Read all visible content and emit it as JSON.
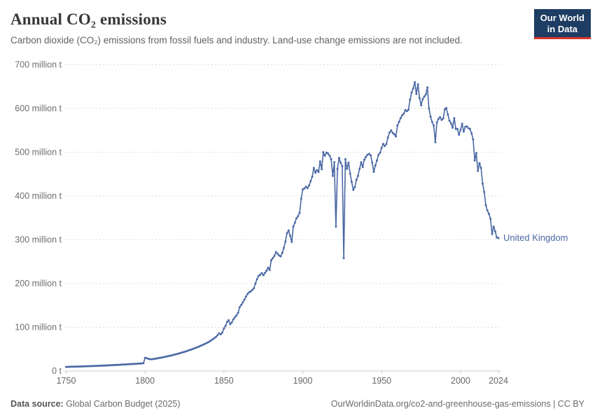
{
  "header": {
    "title": "Annual CO₂ emissions",
    "subtitle": "Carbon dioxide (CO₂) emissions from fossil fuels and industry. Land-use change emissions are not included."
  },
  "logo": {
    "line1": "Our World",
    "line2": "in Data",
    "bg_color": "#1d3d63",
    "accent_color": "#d8352a"
  },
  "footer": {
    "source_label": "Data source:",
    "source": "Global Carbon Budget (2025)",
    "link": "OurWorldinData.org/co2-and-greenhouse-gas-emissions | CC BY"
  },
  "chart_data": {
    "type": "line",
    "title": "Annual CO₂ emissions",
    "unit": "million t",
    "xlim": [
      1750,
      2024
    ],
    "ylim": [
      0,
      700
    ],
    "grid": "dashed-horizontal",
    "x_ticks": [
      1750,
      1800,
      1850,
      1900,
      1950,
      2000,
      2024
    ],
    "y_ticks": [
      {
        "value": 0,
        "label": "0 t"
      },
      {
        "value": 100,
        "label": "100 million t"
      },
      {
        "value": 200,
        "label": "200 million t"
      },
      {
        "value": 300,
        "label": "300 million t"
      },
      {
        "value": 400,
        "label": "400 million t"
      },
      {
        "value": 500,
        "label": "500 million t"
      },
      {
        "value": 600,
        "label": "600 million t"
      },
      {
        "value": 700,
        "label": "700 million t"
      }
    ],
    "series": [
      {
        "name": "United Kingdom",
        "color": "#4a68a4",
        "points": [
          [
            1750,
            9.4
          ],
          [
            1751,
            9.5
          ],
          [
            1752,
            9.6
          ],
          [
            1753,
            9.7
          ],
          [
            1754,
            9.8
          ],
          [
            1755,
            9.9
          ],
          [
            1756,
            10.0
          ],
          [
            1757,
            10.1
          ],
          [
            1758,
            10.2
          ],
          [
            1759,
            10.3
          ],
          [
            1760,
            10.4
          ],
          [
            1761,
            10.6
          ],
          [
            1762,
            10.7
          ],
          [
            1763,
            10.8
          ],
          [
            1764,
            11.0
          ],
          [
            1765,
            11.1
          ],
          [
            1766,
            11.2
          ],
          [
            1767,
            11.4
          ],
          [
            1768,
            11.5
          ],
          [
            1769,
            11.7
          ],
          [
            1770,
            11.8
          ],
          [
            1771,
            12.0
          ],
          [
            1772,
            12.1
          ],
          [
            1773,
            12.3
          ],
          [
            1774,
            12.4
          ],
          [
            1775,
            12.6
          ],
          [
            1776,
            12.8
          ],
          [
            1777,
            12.9
          ],
          [
            1778,
            13.1
          ],
          [
            1779,
            13.3
          ],
          [
            1780,
            13.5
          ],
          [
            1781,
            13.7
          ],
          [
            1782,
            13.9
          ],
          [
            1783,
            14.1
          ],
          [
            1784,
            14.3
          ],
          [
            1785,
            14.5
          ],
          [
            1786,
            14.7
          ],
          [
            1787,
            14.9
          ],
          [
            1788,
            15.1
          ],
          [
            1789,
            15.3
          ],
          [
            1790,
            15.5
          ],
          [
            1791,
            15.8
          ],
          [
            1792,
            16.0
          ],
          [
            1793,
            16.2
          ],
          [
            1794,
            16.5
          ],
          [
            1795,
            16.7
          ],
          [
            1796,
            17.0
          ],
          [
            1797,
            17.2
          ],
          [
            1798,
            17.5
          ],
          [
            1799,
            17.8
          ],
          [
            1800,
            30.1
          ],
          [
            1801,
            29.2
          ],
          [
            1802,
            28.0
          ],
          [
            1803,
            27.2
          ],
          [
            1804,
            26.8
          ],
          [
            1805,
            27.2
          ],
          [
            1806,
            27.8
          ],
          [
            1807,
            28.4
          ],
          [
            1808,
            29.0
          ],
          [
            1809,
            29.7
          ],
          [
            1810,
            30.4
          ],
          [
            1811,
            31.1
          ],
          [
            1812,
            31.8
          ],
          [
            1813,
            32.6
          ],
          [
            1814,
            33.4
          ],
          [
            1815,
            34.2
          ],
          [
            1816,
            35.0
          ],
          [
            1817,
            35.9
          ],
          [
            1818,
            36.8
          ],
          [
            1819,
            37.7
          ],
          [
            1820,
            38.6
          ],
          [
            1821,
            39.6
          ],
          [
            1822,
            40.6
          ],
          [
            1823,
            41.7
          ],
          [
            1824,
            42.8
          ],
          [
            1825,
            43.9
          ],
          [
            1826,
            45.0
          ],
          [
            1827,
            46.2
          ],
          [
            1828,
            47.5
          ],
          [
            1829,
            48.7
          ],
          [
            1830,
            50.0
          ],
          [
            1831,
            51.4
          ],
          [
            1832,
            52.8
          ],
          [
            1833,
            54.2
          ],
          [
            1834,
            55.7
          ],
          [
            1835,
            57.2
          ],
          [
            1836,
            58.8
          ],
          [
            1837,
            60.4
          ],
          [
            1838,
            62.1
          ],
          [
            1839,
            63.8
          ],
          [
            1840,
            65.6
          ],
          [
            1841,
            67.9
          ],
          [
            1842,
            70.3
          ],
          [
            1843,
            72.8
          ],
          [
            1844,
            75.4
          ],
          [
            1845,
            78.1
          ],
          [
            1846,
            82.0
          ],
          [
            1847,
            86.0
          ],
          [
            1848,
            84.0
          ],
          [
            1849,
            88.0
          ],
          [
            1850,
            97
          ],
          [
            1851,
            103
          ],
          [
            1852,
            112
          ],
          [
            1853,
            116
          ],
          [
            1854,
            107
          ],
          [
            1855,
            111
          ],
          [
            1856,
            118
          ],
          [
            1857,
            123
          ],
          [
            1858,
            127
          ],
          [
            1859,
            133
          ],
          [
            1860,
            146
          ],
          [
            1861,
            151
          ],
          [
            1862,
            157
          ],
          [
            1863,
            163
          ],
          [
            1864,
            170
          ],
          [
            1865,
            176
          ],
          [
            1866,
            180
          ],
          [
            1867,
            182
          ],
          [
            1868,
            185
          ],
          [
            1869,
            189
          ],
          [
            1870,
            200
          ],
          [
            1871,
            210
          ],
          [
            1872,
            217
          ],
          [
            1873,
            220
          ],
          [
            1874,
            224
          ],
          [
            1875,
            219
          ],
          [
            1876,
            224
          ],
          [
            1877,
            229
          ],
          [
            1878,
            236
          ],
          [
            1879,
            231
          ],
          [
            1880,
            253
          ],
          [
            1881,
            258
          ],
          [
            1882,
            263
          ],
          [
            1883,
            272
          ],
          [
            1884,
            268
          ],
          [
            1885,
            264
          ],
          [
            1886,
            262
          ],
          [
            1887,
            270
          ],
          [
            1888,
            281
          ],
          [
            1889,
            296
          ],
          [
            1890,
            315
          ],
          [
            1891,
            321
          ],
          [
            1892,
            309
          ],
          [
            1893,
            295
          ],
          [
            1894,
            330
          ],
          [
            1895,
            339
          ],
          [
            1896,
            349
          ],
          [
            1897,
            354
          ],
          [
            1898,
            361
          ],
          [
            1899,
            394
          ],
          [
            1900,
            415
          ],
          [
            1901,
            417
          ],
          [
            1902,
            421
          ],
          [
            1903,
            418
          ],
          [
            1904,
            424
          ],
          [
            1905,
            434
          ],
          [
            1906,
            444
          ],
          [
            1907,
            464
          ],
          [
            1908,
            453
          ],
          [
            1909,
            459
          ],
          [
            1910,
            455
          ],
          [
            1911,
            479
          ],
          [
            1912,
            461
          ],
          [
            1913,
            500
          ],
          [
            1914,
            492
          ],
          [
            1915,
            499
          ],
          [
            1916,
            497
          ],
          [
            1917,
            492
          ],
          [
            1918,
            484
          ],
          [
            1919,
            446
          ],
          [
            1920,
            477
          ],
          [
            1921,
            330
          ],
          [
            1922,
            462
          ],
          [
            1923,
            487
          ],
          [
            1924,
            476
          ],
          [
            1925,
            468
          ],
          [
            1926,
            258
          ],
          [
            1927,
            484
          ],
          [
            1928,
            462
          ],
          [
            1929,
            476
          ],
          [
            1930,
            451
          ],
          [
            1931,
            432
          ],
          [
            1932,
            414
          ],
          [
            1933,
            420
          ],
          [
            1934,
            437
          ],
          [
            1935,
            446
          ],
          [
            1936,
            462
          ],
          [
            1937,
            477
          ],
          [
            1938,
            466
          ],
          [
            1939,
            483
          ],
          [
            1940,
            489
          ],
          [
            1941,
            494
          ],
          [
            1942,
            496
          ],
          [
            1943,
            493
          ],
          [
            1944,
            476
          ],
          [
            1945,
            455
          ],
          [
            1946,
            470
          ],
          [
            1947,
            481
          ],
          [
            1948,
            494
          ],
          [
            1949,
            499
          ],
          [
            1950,
            510
          ],
          [
            1951,
            519
          ],
          [
            1952,
            514
          ],
          [
            1953,
            519
          ],
          [
            1954,
            534
          ],
          [
            1955,
            545
          ],
          [
            1956,
            550
          ],
          [
            1957,
            544
          ],
          [
            1958,
            541
          ],
          [
            1959,
            536
          ],
          [
            1960,
            561
          ],
          [
            1961,
            569
          ],
          [
            1962,
            578
          ],
          [
            1963,
            584
          ],
          [
            1964,
            588
          ],
          [
            1965,
            596
          ],
          [
            1966,
            594
          ],
          [
            1967,
            597
          ],
          [
            1968,
            620
          ],
          [
            1969,
            636
          ],
          [
            1970,
            646
          ],
          [
            1971,
            660
          ],
          [
            1972,
            633
          ],
          [
            1973,
            655
          ],
          [
            1974,
            624
          ],
          [
            1975,
            607
          ],
          [
            1976,
            621
          ],
          [
            1977,
            627
          ],
          [
            1978,
            632
          ],
          [
            1979,
            648
          ],
          [
            1980,
            600
          ],
          [
            1981,
            581
          ],
          [
            1982,
            569
          ],
          [
            1983,
            561
          ],
          [
            1984,
            523
          ],
          [
            1985,
            568
          ],
          [
            1986,
            576
          ],
          [
            1987,
            580
          ],
          [
            1988,
            574
          ],
          [
            1989,
            577
          ],
          [
            1990,
            598
          ],
          [
            1991,
            601
          ],
          [
            1992,
            586
          ],
          [
            1993,
            572
          ],
          [
            1994,
            566
          ],
          [
            1995,
            556
          ],
          [
            1996,
            578
          ],
          [
            1997,
            553
          ],
          [
            1998,
            553
          ],
          [
            1999,
            540
          ],
          [
            2000,
            551
          ],
          [
            2001,
            565
          ],
          [
            2002,
            547
          ],
          [
            2003,
            558
          ],
          [
            2004,
            559
          ],
          [
            2005,
            555
          ],
          [
            2006,
            553
          ],
          [
            2007,
            543
          ],
          [
            2008,
            529
          ],
          [
            2009,
            481
          ],
          [
            2010,
            498
          ],
          [
            2011,
            457
          ],
          [
            2012,
            475
          ],
          [
            2013,
            464
          ],
          [
            2014,
            428
          ],
          [
            2015,
            409
          ],
          [
            2016,
            379
          ],
          [
            2017,
            367
          ],
          [
            2018,
            359
          ],
          [
            2019,
            348
          ],
          [
            2020,
            313
          ],
          [
            2021,
            330
          ],
          [
            2022,
            319
          ],
          [
            2023,
            305
          ],
          [
            2024,
            304
          ]
        ]
      }
    ]
  }
}
